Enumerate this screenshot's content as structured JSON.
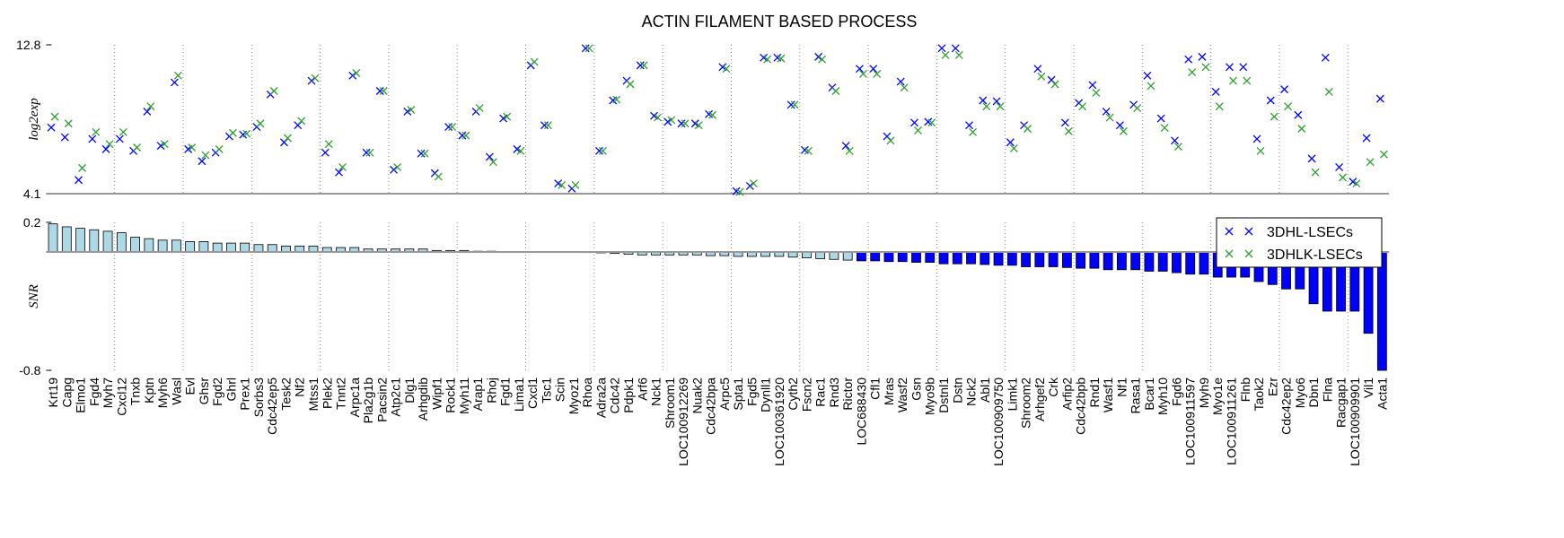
{
  "chart_data": [
    {
      "type": "scatter",
      "title": "ACTIN FILAMENT BASED PROCESS",
      "ylabel": "log2exp",
      "ylim": [
        4.1,
        12.8
      ],
      "yticks": [
        4.1,
        12.8
      ],
      "legend": "upper right",
      "series": [
        {
          "name": "3DHL-LSECs",
          "color": "#0000ff",
          "values": [
            7.97,
            7.4,
            4.9,
            7.3,
            6.7,
            7.3,
            6.6,
            8.9,
            6.9,
            10.6,
            6.7,
            6.0,
            6.5,
            7.45,
            7.55,
            8.0,
            9.9,
            7.1,
            8.1,
            10.7,
            6.5,
            5.35,
            11.0,
            6.5,
            10.1,
            5.5,
            8.9,
            6.45,
            5.3,
            8.0,
            7.5,
            8.9,
            6.25,
            8.5,
            6.7,
            11.6,
            8.1,
            4.7,
            4.4,
            12.6,
            6.6,
            9.55,
            10.7,
            11.6,
            8.65,
            8.3,
            8.2,
            8.2,
            8.75,
            11.5,
            4.25,
            4.55,
            12.05,
            12.05,
            9.3,
            6.65,
            12.1,
            10.3,
            6.9,
            11.4,
            11.4,
            7.45,
            10.65,
            8.25,
            8.3,
            12.6,
            12.6,
            8.1,
            9.55,
            9.5,
            7.1,
            8.1,
            11.4,
            10.75,
            8.25,
            9.4,
            10.45,
            8.9,
            8.1,
            9.3,
            11.0,
            8.5,
            7.2,
            11.95,
            12.1,
            10.05,
            11.5,
            11.5,
            7.3,
            9.55,
            10.2,
            8.7,
            6.15,
            12.05,
            5.65,
            4.8,
            7.35,
            9.65
          ]
        },
        {
          "name": "3DHLK-LSECs",
          "color": "#2ca02c",
          "values": [
            8.6,
            8.2,
            5.6,
            7.7,
            7.0,
            7.7,
            6.8,
            9.2,
            7.0,
            11.0,
            6.8,
            6.35,
            6.7,
            7.65,
            7.6,
            8.2,
            10.1,
            7.35,
            8.35,
            10.85,
            7.0,
            5.65,
            11.15,
            6.5,
            10.1,
            5.65,
            9.0,
            6.45,
            5.1,
            8.0,
            7.5,
            9.1,
            5.95,
            8.6,
            6.6,
            11.8,
            8.1,
            4.6,
            4.6,
            12.6,
            6.6,
            9.6,
            10.5,
            11.6,
            8.55,
            8.4,
            8.2,
            8.1,
            8.7,
            11.4,
            4.2,
            4.7,
            11.95,
            12.0,
            9.3,
            6.6,
            11.95,
            10.1,
            6.6,
            11.1,
            11.1,
            7.2,
            10.3,
            7.8,
            8.25,
            12.2,
            12.2,
            7.7,
            9.2,
            9.2,
            6.75,
            7.9,
            10.95,
            10.5,
            7.75,
            9.2,
            10.0,
            8.55,
            7.75,
            9.1,
            10.4,
            7.95,
            6.85,
            11.2,
            11.5,
            9.2,
            10.7,
            10.7,
            6.6,
            8.6,
            9.2,
            7.9,
            5.35,
            10.05,
            5.05,
            4.7,
            5.95,
            6.4
          ]
        }
      ]
    },
    {
      "type": "bar",
      "ylabel": "SNR",
      "ylim": [
        -0.8,
        0.2
      ],
      "yticks": [
        -0.8,
        0.2
      ],
      "categories": [
        "Krt19",
        "Capg",
        "Elmo1",
        "Fgd4",
        "Myh7",
        "Cxcl12",
        "Tnxb",
        "Kptn",
        "Myh6",
        "Wasl",
        "Evl",
        "Ghsr",
        "Fgd2",
        "Ghrl",
        "Prex1",
        "Sorbs3",
        "Cdc42ep5",
        "Tesk2",
        "Nf2",
        "Mtss1",
        "Plek2",
        "Tnnt2",
        "Arpc1a",
        "Pla2g1b",
        "Pacsin2",
        "Atp2c1",
        "Dlg1",
        "Arhgdib",
        "Wipf1",
        "Rock1",
        "Myh11",
        "Arap1",
        "Rhoj",
        "Fgd1",
        "Lima1",
        "Cxcl1",
        "Tsc1",
        "Scin",
        "Myoz1",
        "Rhoa",
        "Adra2a",
        "Cdc42",
        "Pdpk1",
        "Arf6",
        "Nck1",
        "Shroom1",
        "LOC100912269",
        "Nuak2",
        "Cdc42bpa",
        "Arpc5",
        "Spta1",
        "Fgd5",
        "Dynll1",
        "LOC100361920",
        "Cyth2",
        "Fscn2",
        "Rac1",
        "Rnd3",
        "Rictor",
        "LOC688430",
        "Cfl1",
        "Mras",
        "Wasf2",
        "Gsn",
        "Myo9b",
        "Dstnl1",
        "Dstn",
        "Nck2",
        "Abl1",
        "LOC100909750",
        "Limk1",
        "Shroom2",
        "Arhgef2",
        "Crk",
        "Arfip2",
        "Cdc42bpb",
        "Rnd1",
        "Wasf1",
        "Nf1",
        "Rasa1",
        "Bcar1",
        "Myh10",
        "Fgd6",
        "LOC100911597",
        "Myh9",
        "Myo1e",
        "LOC100911261",
        "Flnb",
        "Taok2",
        "Ezr",
        "Cdc42ep2",
        "Myo6",
        "Dbn1",
        "Flna",
        "Racgap1",
        "LOC100909901",
        "Vil1",
        "Acta1"
      ],
      "values": [
        0.19,
        0.17,
        0.16,
        0.15,
        0.14,
        0.13,
        0.1,
        0.09,
        0.08,
        0.08,
        0.07,
        0.07,
        0.06,
        0.06,
        0.06,
        0.05,
        0.05,
        0.04,
        0.04,
        0.04,
        0.03,
        0.03,
        0.03,
        0.02,
        0.02,
        0.02,
        0.02,
        0.02,
        0.01,
        0.01,
        0.01,
        0.005,
        0.005,
        0.003,
        0.002,
        0.001,
        0,
        -0.002,
        -0.003,
        -0.004,
        -0.006,
        -0.01,
        -0.015,
        -0.02,
        -0.02,
        -0.02,
        -0.02,
        -0.02,
        -0.025,
        -0.025,
        -0.03,
        -0.03,
        -0.03,
        -0.03,
        -0.035,
        -0.04,
        -0.045,
        -0.05,
        -0.055,
        -0.06,
        -0.06,
        -0.065,
        -0.065,
        -0.07,
        -0.07,
        -0.08,
        -0.08,
        -0.08,
        -0.085,
        -0.09,
        -0.09,
        -0.1,
        -0.1,
        -0.1,
        -0.105,
        -0.11,
        -0.11,
        -0.12,
        -0.12,
        -0.12,
        -0.13,
        -0.13,
        -0.14,
        -0.15,
        -0.15,
        -0.17,
        -0.17,
        -0.17,
        -0.2,
        -0.22,
        -0.25,
        -0.25,
        -0.35,
        -0.4,
        -0.4,
        -0.4,
        -0.55,
        -0.8
      ],
      "colors": [
        "#add8e6",
        "#add8e6",
        "#add8e6",
        "#add8e6",
        "#add8e6",
        "#add8e6",
        "#add8e6",
        "#add8e6",
        "#add8e6",
        "#add8e6",
        "#add8e6",
        "#add8e6",
        "#add8e6",
        "#add8e6",
        "#add8e6",
        "#add8e6",
        "#add8e6",
        "#add8e6",
        "#add8e6",
        "#add8e6",
        "#add8e6",
        "#add8e6",
        "#add8e6",
        "#add8e6",
        "#add8e6",
        "#add8e6",
        "#add8e6",
        "#add8e6",
        "#add8e6",
        "#add8e6",
        "#add8e6",
        "#add8e6",
        "#add8e6",
        "#add8e6",
        "#add8e6",
        "#add8e6",
        "#add8e6",
        "#add8e6",
        "#add8e6",
        "#add8e6",
        "#add8e6",
        "#add8e6",
        "#add8e6",
        "#add8e6",
        "#add8e6",
        "#add8e6",
        "#add8e6",
        "#add8e6",
        "#add8e6",
        "#add8e6",
        "#add8e6",
        "#add8e6",
        "#add8e6",
        "#add8e6",
        "#add8e6",
        "#add8e6",
        "#add8e6",
        "#add8e6",
        "#add8e6",
        "#0000ff",
        "#0000ff",
        "#0000ff",
        "#0000ff",
        "#0000ff",
        "#0000ff",
        "#0000ff",
        "#0000ff",
        "#0000ff",
        "#0000ff",
        "#0000ff",
        "#0000ff",
        "#0000ff",
        "#0000ff",
        "#0000ff",
        "#0000ff",
        "#0000ff",
        "#0000ff",
        "#0000ff",
        "#0000ff",
        "#0000ff",
        "#0000ff",
        "#0000ff",
        "#0000ff",
        "#0000ff",
        "#0000ff",
        "#0000ff",
        "#0000ff",
        "#0000ff",
        "#0000ff",
        "#0000ff",
        "#0000ff",
        "#0000ff",
        "#0000ff",
        "#0000ff",
        "#0000ff",
        "#0000ff",
        "#0000ff",
        "#0000ff"
      ]
    }
  ]
}
